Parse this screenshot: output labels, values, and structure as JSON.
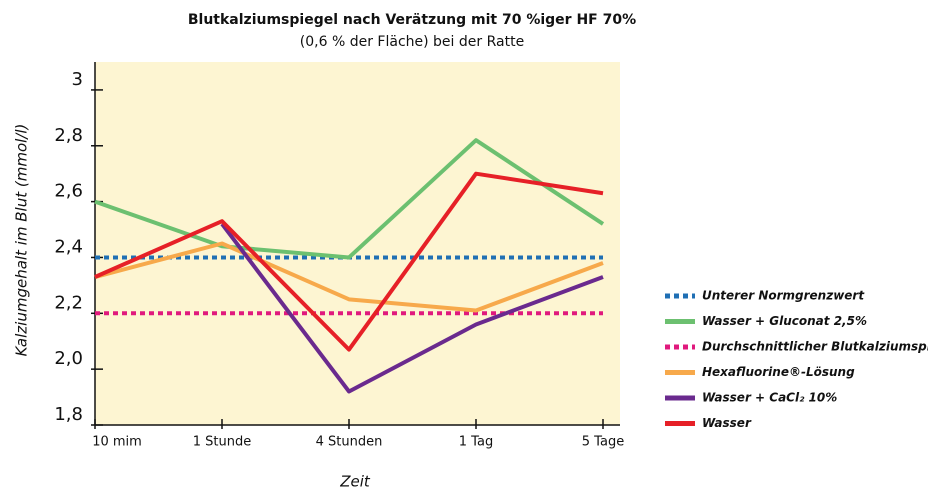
{
  "chart_data": {
    "type": "line",
    "title": "Blutkalziumspiegel nach Verätzung mit 70 %iger HF 70%",
    "subtitle": "(0,6 % der Fläche) bei der Ratte",
    "y_label": "Kalziumgehalt im Blut (mmol/l)",
    "x_label": "Zeit",
    "categories": [
      "10 mim",
      "1 Stunde",
      "4 Stunden",
      "1 Tag",
      "5 Tage"
    ],
    "ylim": [
      1.8,
      3.1
    ],
    "yticks": [
      {
        "value": 1.8,
        "label": "1,8"
      },
      {
        "value": 2.0,
        "label": "2,0"
      },
      {
        "value": 2.2,
        "label": "2,2"
      },
      {
        "value": 2.4,
        "label": "2,4"
      },
      {
        "value": 2.6,
        "label": "2,6"
      },
      {
        "value": 2.8,
        "label": "2,8"
      },
      3
    ],
    "legend": "right",
    "series": [
      {
        "name": "Unterer Normgrenzwert",
        "color": "#1f6fb4",
        "style": "dotted",
        "values": [
          2.4,
          2.4,
          2.4,
          2.4,
          2.4
        ]
      },
      {
        "name": "Wasser + Gluconat 2,5%",
        "color": "#6cc070",
        "style": "solid",
        "values": [
          2.6,
          2.44,
          2.4,
          2.82,
          2.52
        ]
      },
      {
        "name": "Durchschnittlicher Blutkalziumspiegel",
        "color": "#e0197d",
        "style": "dotted",
        "values": [
          2.2,
          2.2,
          2.2,
          2.2,
          2.2
        ]
      },
      {
        "name": "Hexafluorine®-Lösung",
        "color": "#f7a94b",
        "style": "solid",
        "values": [
          2.33,
          2.45,
          2.25,
          2.21,
          2.38
        ]
      },
      {
        "name": "Wasser + CaCl₂ 10%",
        "color": "#6a2a8e",
        "style": "solid",
        "values": [
          null,
          2.52,
          1.92,
          2.16,
          2.33
        ]
      },
      {
        "name": "Wasser",
        "color": "#e62027",
        "style": "solid",
        "values": [
          2.33,
          2.53,
          2.07,
          2.7,
          2.63
        ]
      }
    ]
  }
}
